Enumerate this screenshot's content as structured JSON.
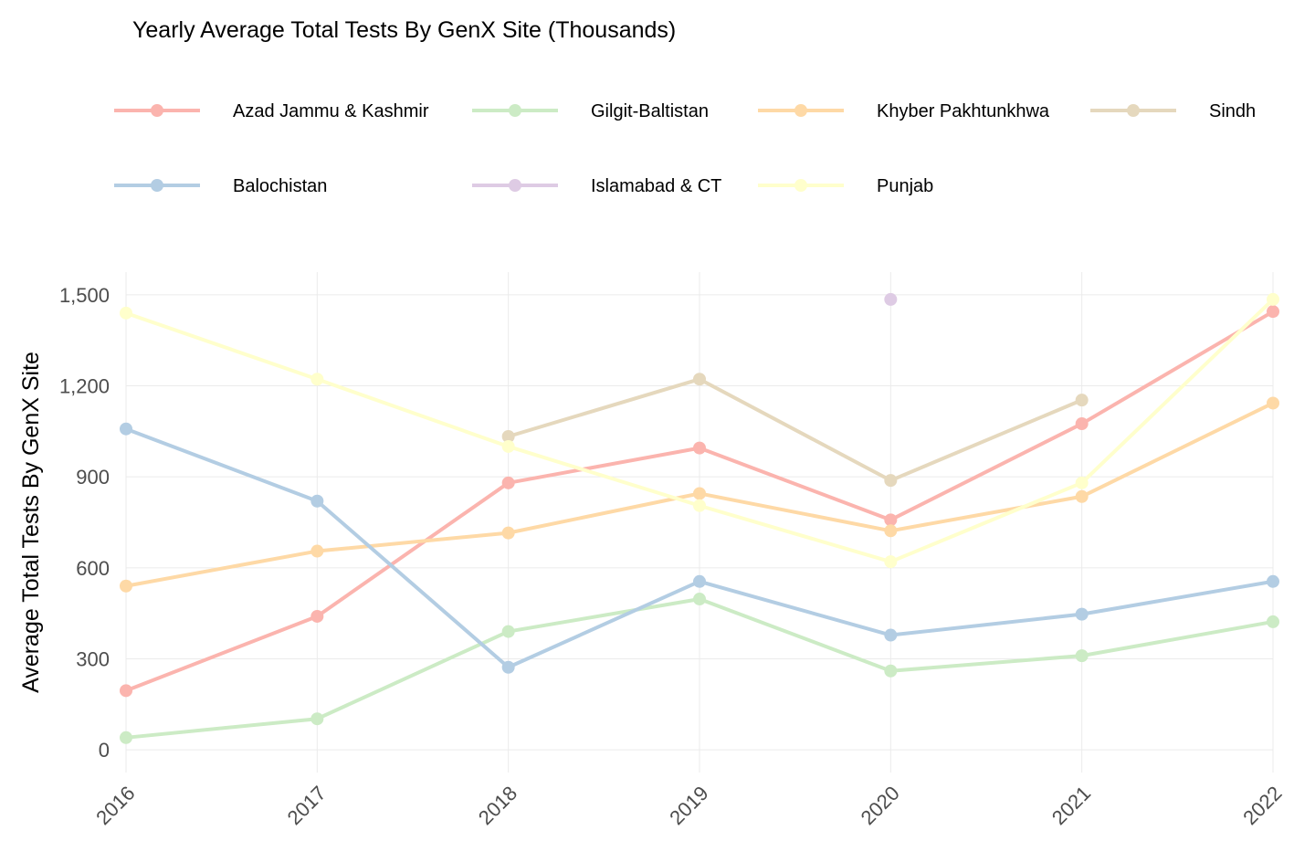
{
  "chart_data": {
    "type": "line",
    "title": "Yearly Average Total Tests By GenX Site (Thousands)",
    "xlabel": "",
    "ylabel": "Average Total Tests By GenX Site",
    "x": [
      "2016",
      "2017",
      "2018",
      "2019",
      "2020",
      "2021",
      "2022"
    ],
    "yticks": [
      "0",
      "300",
      "600",
      "900",
      "1,200",
      "1,500"
    ],
    "ylim": [
      -75,
      1575
    ],
    "grid": true,
    "legend_position": "top",
    "series": [
      {
        "name": "Azad Jammu & Kashmir",
        "color": "#FBB4AE",
        "values": [
          195,
          440,
          880,
          995,
          758,
          1075,
          1445
        ]
      },
      {
        "name": "Gilgit-Baltistan",
        "color": "#CCEBC5",
        "values": [
          40,
          102,
          390,
          497,
          260,
          310,
          422
        ]
      },
      {
        "name": "Khyber Pakhtunkhwa",
        "color": "#FED9A6",
        "values": [
          540,
          655,
          715,
          845,
          722,
          835,
          1143
        ]
      },
      {
        "name": "Sindh",
        "color": "#E5D8BD",
        "values": [
          null,
          null,
          1033,
          1222,
          888,
          1153,
          null
        ]
      },
      {
        "name": "Balochistan",
        "color": "#B3CDE3",
        "values": [
          1058,
          820,
          272,
          555,
          378,
          447,
          555
        ]
      },
      {
        "name": "Islamabad & CT",
        "color": "#DECBE4",
        "values": [
          null,
          null,
          null,
          null,
          1485,
          null,
          null
        ]
      },
      {
        "name": "Punjab",
        "color": "#FFFFCC",
        "values": [
          1440,
          1222,
          1000,
          805,
          620,
          880,
          1485
        ]
      }
    ]
  }
}
